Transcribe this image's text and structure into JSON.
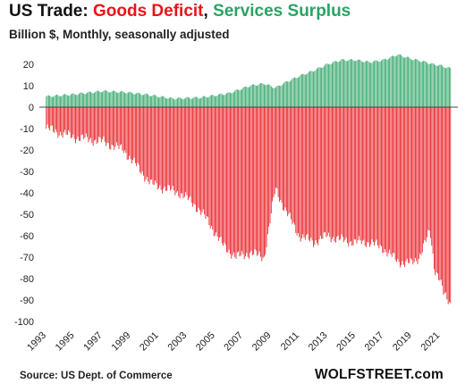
{
  "title": {
    "prefix": "US Trade: ",
    "deficit": "Goods Deficit",
    "separator": ", ",
    "surplus": "Services Surplus"
  },
  "subtitle": "Billion $, Monthly, seasonally adjusted",
  "source": "Source: US Dept. of Commerce",
  "brand": "WOLFSTREET.com",
  "colors": {
    "deficit": "#e8141a",
    "surplus": "#2aa363",
    "title_text": "#111111",
    "zero_line": "#444444"
  },
  "chart_data": {
    "type": "bar",
    "x_label_years": [
      "1993",
      "1995",
      "1997",
      "1999",
      "2001",
      "2003",
      "2005",
      "2007",
      "2009",
      "2011",
      "2013",
      "2015",
      "2017",
      "2019",
      "2021"
    ],
    "y_ticks": [
      20,
      10,
      0,
      -10,
      -20,
      -30,
      -40,
      -50,
      -60,
      -70,
      -80,
      -90,
      -100
    ],
    "ylim": [
      -100,
      25
    ],
    "x_range": [
      1993,
      2021.75
    ],
    "series": [
      {
        "name": "Goods Deficit",
        "key": "goods",
        "points": [
          [
            1993.0,
            -10
          ],
          [
            1995.0,
            -14
          ],
          [
            1997.0,
            -16
          ],
          [
            1998.5,
            -20
          ],
          [
            1999.5,
            -28
          ],
          [
            2000.5,
            -36
          ],
          [
            2001.5,
            -38
          ],
          [
            2002.5,
            -40
          ],
          [
            2003.5,
            -45
          ],
          [
            2004.5,
            -53
          ],
          [
            2005.5,
            -64
          ],
          [
            2006.5,
            -70
          ],
          [
            2007.5,
            -68
          ],
          [
            2008.5,
            -70
          ],
          [
            2009.3,
            -38
          ],
          [
            2010.0,
            -48
          ],
          [
            2011.0,
            -60
          ],
          [
            2012.0,
            -63
          ],
          [
            2013.0,
            -60
          ],
          [
            2014.0,
            -62
          ],
          [
            2015.0,
            -63
          ],
          [
            2016.0,
            -63
          ],
          [
            2017.0,
            -66
          ],
          [
            2018.0,
            -72
          ],
          [
            2019.0,
            -73
          ],
          [
            2019.5,
            -70
          ],
          [
            2020.3,
            -58
          ],
          [
            2020.6,
            -75
          ],
          [
            2021.0,
            -80
          ],
          [
            2021.25,
            -87
          ],
          [
            2021.5,
            -90
          ],
          [
            2021.75,
            -92
          ]
        ]
      },
      {
        "name": "Services Surplus",
        "key": "services",
        "points": [
          [
            1993.0,
            5
          ],
          [
            1995.0,
            6
          ],
          [
            1997.0,
            7.5
          ],
          [
            1998.5,
            7
          ],
          [
            2000.0,
            6
          ],
          [
            2002.0,
            4
          ],
          [
            2004.0,
            4.5
          ],
          [
            2006.0,
            6.5
          ],
          [
            2007.5,
            10
          ],
          [
            2008.5,
            11
          ],
          [
            2009.3,
            9
          ],
          [
            2010.0,
            11.5
          ],
          [
            2011.0,
            14.5
          ],
          [
            2012.0,
            17
          ],
          [
            2013.0,
            20
          ],
          [
            2014.0,
            22
          ],
          [
            2015.0,
            22
          ],
          [
            2016.0,
            21
          ],
          [
            2017.0,
            22
          ],
          [
            2018.0,
            24.5
          ],
          [
            2019.0,
            22.5
          ],
          [
            2020.0,
            21
          ],
          [
            2020.5,
            20
          ],
          [
            2021.0,
            19.5
          ],
          [
            2021.75,
            18
          ]
        ]
      }
    ],
    "grid": false
  }
}
